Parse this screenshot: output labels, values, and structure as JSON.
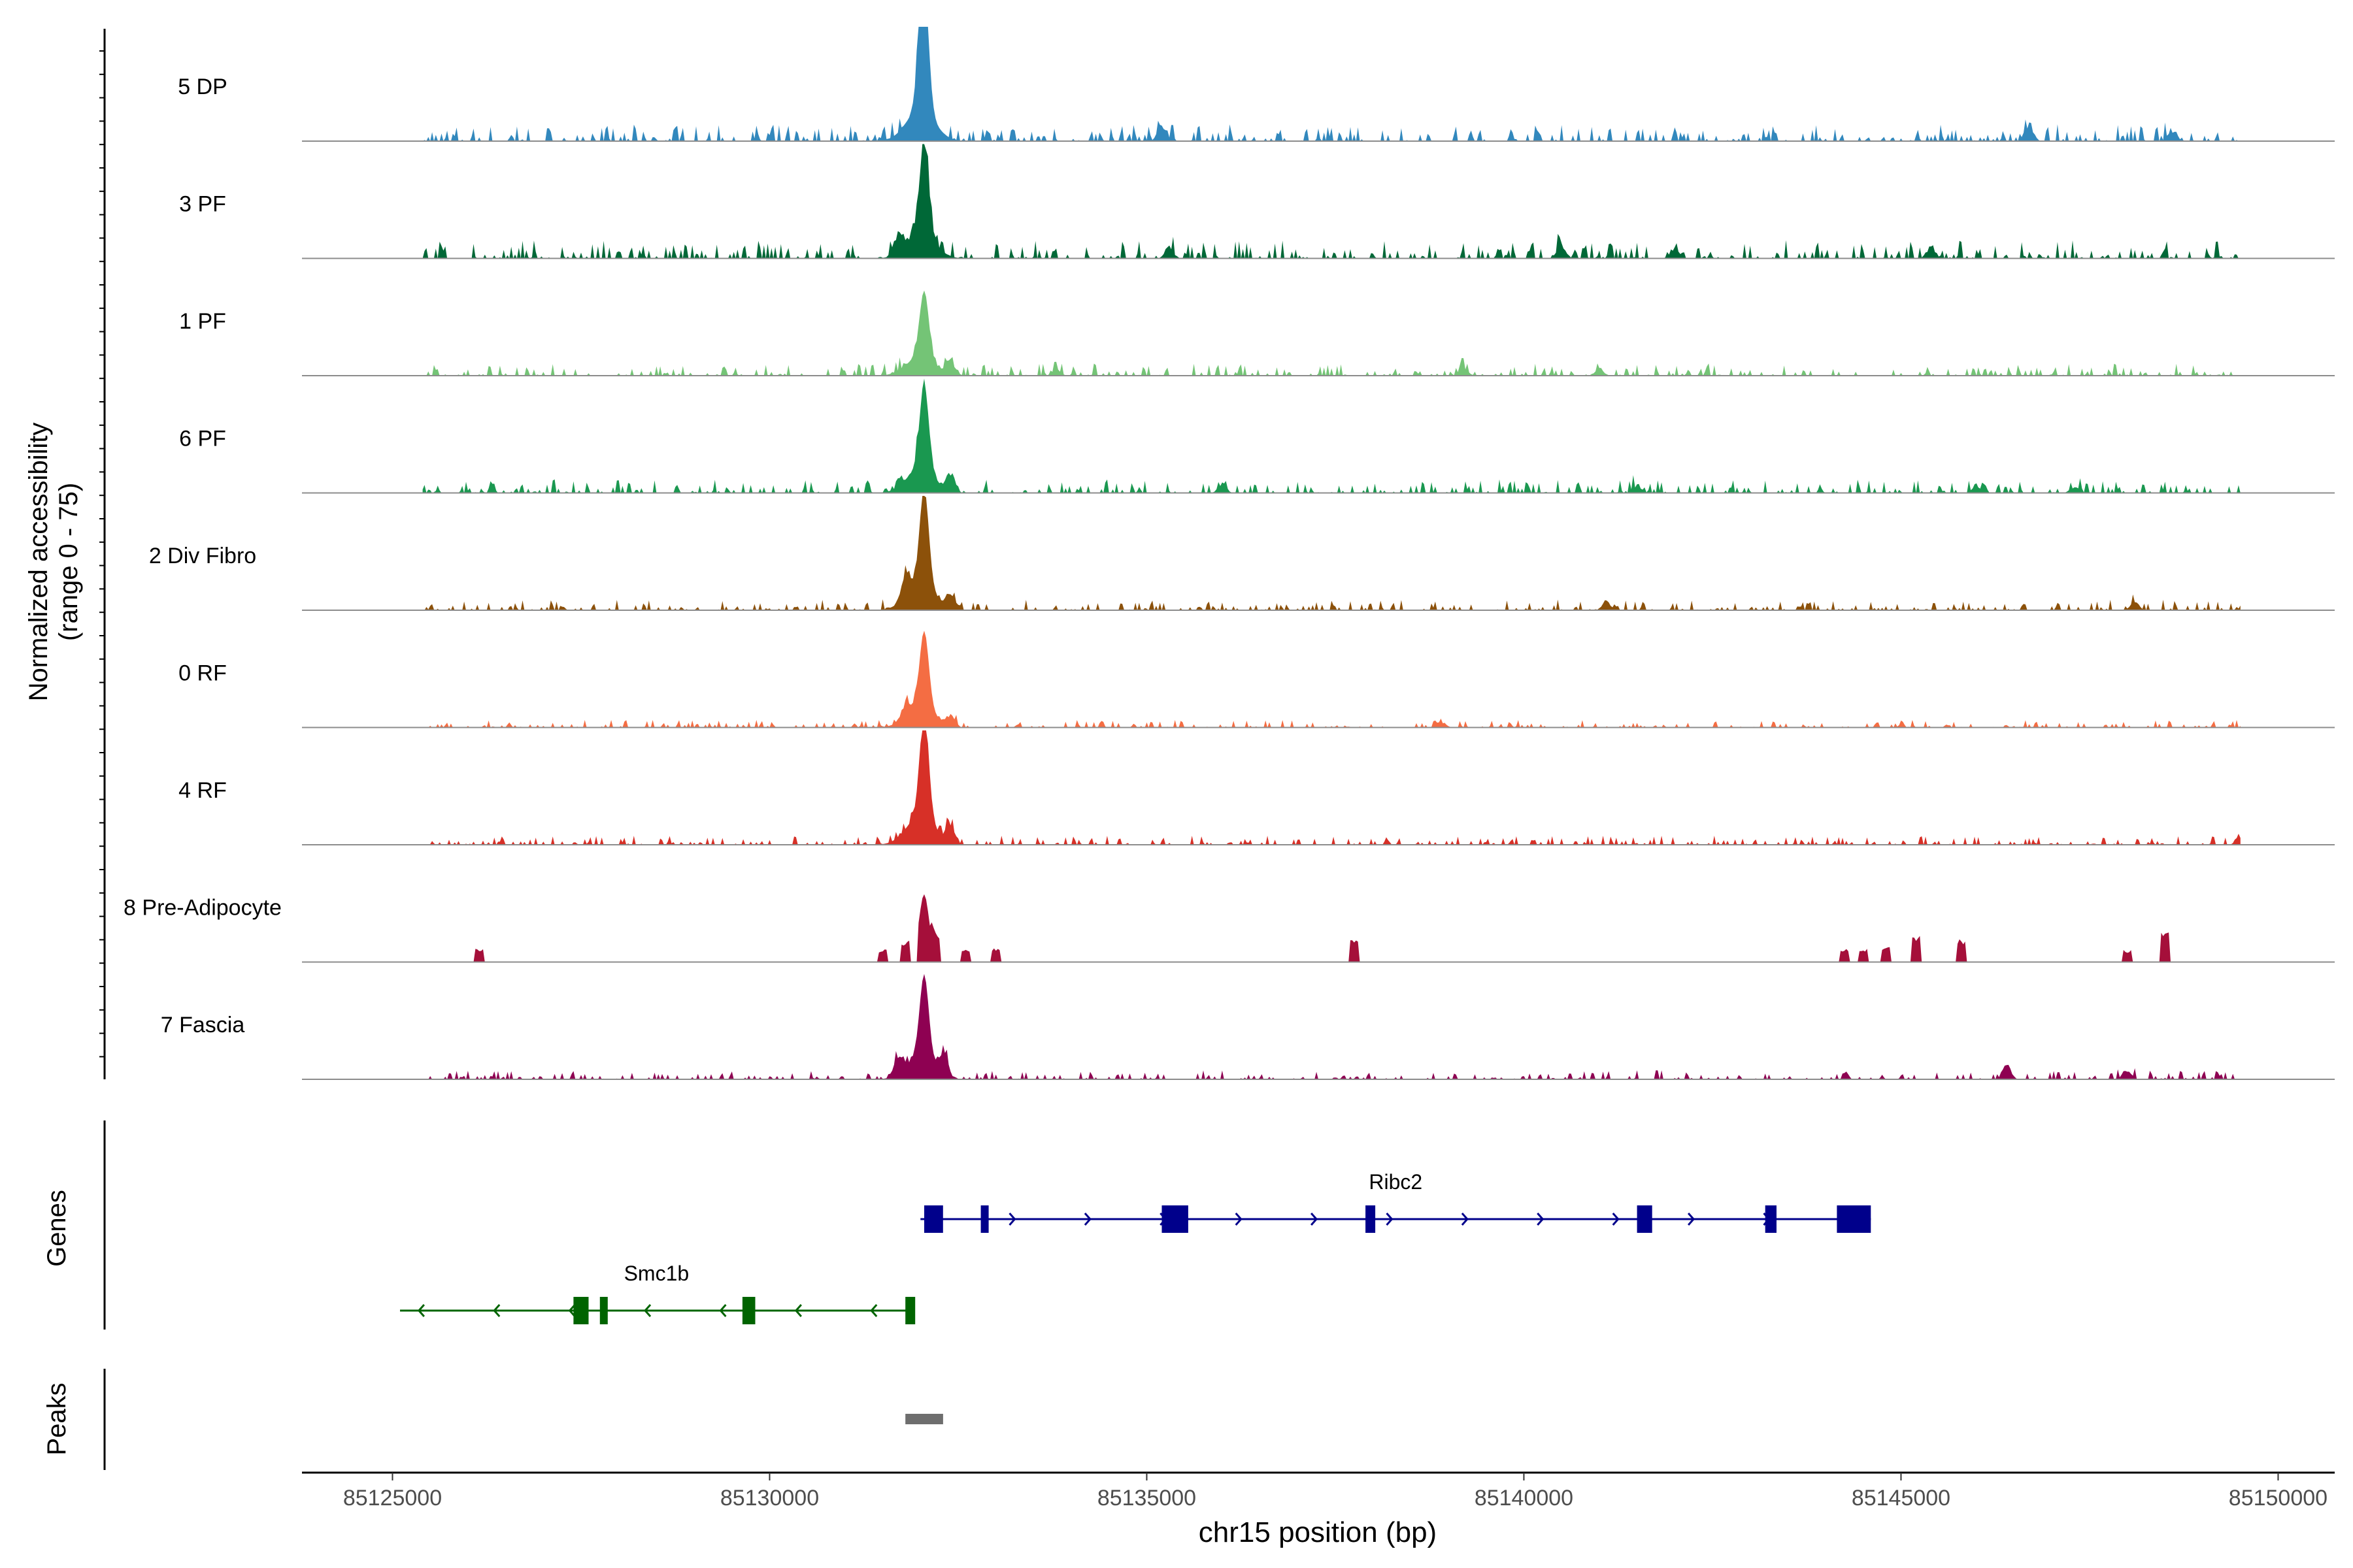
{
  "chart_data": {
    "type": "area",
    "title": "",
    "ylabel_line1": "Normalized accessibility",
    "ylabel_line2": "(range 0 - 75)",
    "ylim": [
      0,
      75
    ],
    "xlabel": "chr15 position (bp)",
    "xlim": [
      85123800,
      85150750
    ],
    "xticks": [
      85125000,
      85130000,
      85135000,
      85140000,
      85145000,
      85150000
    ],
    "xtick_labels": [
      "85125000",
      "85130000",
      "85135000",
      "85140000",
      "85145000",
      "85150000"
    ],
    "tracks": [
      {
        "name": "5 DP",
        "color": "#3288BD",
        "peak": 75,
        "noise": 11,
        "sparse": false,
        "bumps": [
          [
            85132000,
            30
          ],
          [
            85135200,
            14
          ],
          [
            85146700,
            14
          ],
          [
            85148600,
            9
          ]
        ]
      },
      {
        "name": "3 PF",
        "color": "#006837",
        "peak": 60,
        "noise": 12,
        "sparse": false,
        "bumps": [
          [
            85131700,
            14
          ],
          [
            85135300,
            9
          ],
          [
            85140500,
            10
          ],
          [
            85142000,
            9
          ],
          [
            85145400,
            10
          ]
        ]
      },
      {
        "name": "1 PF",
        "color": "#74C476",
        "peak": 44,
        "noise": 8,
        "sparse": false,
        "bumps": [
          [
            85132400,
            12
          ],
          [
            85133800,
            5
          ],
          [
            85139200,
            7
          ],
          [
            85141000,
            6
          ]
        ]
      },
      {
        "name": "6 PF",
        "color": "#1A9850",
        "peak": 56,
        "noise": 9,
        "sparse": false,
        "bumps": [
          [
            85132400,
            15
          ],
          [
            85136000,
            7
          ],
          [
            85141500,
            6
          ],
          [
            85146000,
            6
          ],
          [
            85147300,
            5
          ]
        ]
      },
      {
        "name": "2 Div Fibro",
        "color": "#8C510A",
        "peak": 63,
        "noise": 7,
        "sparse": false,
        "bumps": [
          [
            85131800,
            18
          ],
          [
            85132400,
            12
          ],
          [
            85141100,
            7
          ],
          [
            85148100,
            6
          ]
        ]
      },
      {
        "name": "0 RF",
        "color": "#F46D43",
        "peak": 50,
        "noise": 5,
        "sparse": false,
        "bumps": [
          [
            85131800,
            10
          ],
          [
            85132400,
            8
          ],
          [
            85138900,
            5
          ]
        ]
      },
      {
        "name": "4 RF",
        "color": "#D73027",
        "peak": 67,
        "noise": 6,
        "sparse": false,
        "bumps": [
          [
            85132400,
            16
          ],
          [
            85149500,
            7
          ]
        ]
      },
      {
        "name": "8 Pre-Adipocyte",
        "color": "#A50F3A",
        "peak": 35,
        "noise": 0,
        "sparse": true,
        "bumps": [
          [
            85126150,
            9
          ],
          [
            85131500,
            8
          ],
          [
            85131800,
            8
          ],
          [
            85132200,
            13
          ],
          [
            85132600,
            9
          ],
          [
            85133000,
            9
          ],
          [
            85137750,
            15
          ],
          [
            85144250,
            9
          ],
          [
            85144500,
            9
          ],
          [
            85144800,
            10
          ],
          [
            85145200,
            18
          ],
          [
            85145800,
            15
          ],
          [
            85148000,
            8
          ],
          [
            85148500,
            22
          ]
        ]
      },
      {
        "name": "7 Fascia",
        "color": "#8E0152",
        "peak": 54,
        "noise": 6,
        "sparse": false,
        "bumps": [
          [
            85131700,
            16
          ],
          [
            85132300,
            18
          ],
          [
            85146400,
            12
          ],
          [
            85148000,
            8
          ]
        ]
      }
    ],
    "genes_label": "Genes",
    "genes": [
      {
        "name": "Ribc2",
        "strand": "+",
        "color": "#00008B",
        "start": 85132000,
        "end": 85144600,
        "exons": [
          [
            85132050,
            85132300
          ],
          [
            85132800,
            85132900
          ],
          [
            85135200,
            85135550
          ],
          [
            85137900,
            85138030
          ],
          [
            85141500,
            85141700
          ],
          [
            85143200,
            85143350
          ],
          [
            85144150,
            85144600
          ]
        ]
      },
      {
        "name": "Smc1b",
        "strand": "-",
        "color": "#006400",
        "start": 85125100,
        "end": 85131900,
        "exons": [
          [
            85127400,
            85127600
          ],
          [
            85127750,
            85127850
          ],
          [
            85129640,
            85129810
          ],
          [
            85131800,
            85131930
          ]
        ]
      }
    ],
    "peaks_label": "Peaks",
    "peaks": [
      {
        "start": 85131800,
        "end": 85132300,
        "color": "#6E6E6E"
      }
    ]
  }
}
